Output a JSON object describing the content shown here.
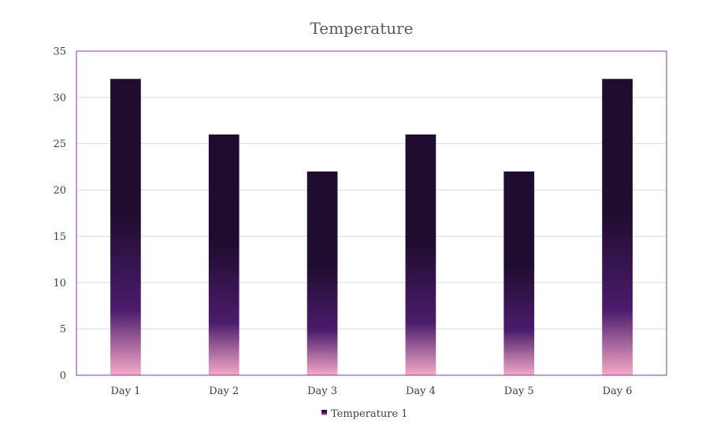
{
  "chart_data": {
    "type": "bar",
    "title": "Temperature",
    "xlabel": "",
    "ylabel": "",
    "categories": [
      "Day 1",
      "Day 2",
      "Day 3",
      "Day 4",
      "Day 5",
      "Day 6"
    ],
    "series": [
      {
        "name": "Temperature 1",
        "values": [
          32,
          26,
          22,
          26,
          22,
          32
        ]
      }
    ],
    "ylim": [
      0,
      35
    ],
    "yticks": [
      0,
      5,
      10,
      15,
      20,
      25,
      30,
      35
    ],
    "ytick_labels": [
      "0",
      "5",
      "10",
      "15",
      "20",
      "25",
      "30",
      "35"
    ],
    "grid": true,
    "legend_position": "bottom",
    "colors": {
      "bar_top": "#1f0c2e",
      "bar_mid": "#4b1c6c",
      "bar_bottom": "#f4a9c6",
      "plot_border": "#7b3f94",
      "gridline": "#d9d9d9"
    }
  }
}
